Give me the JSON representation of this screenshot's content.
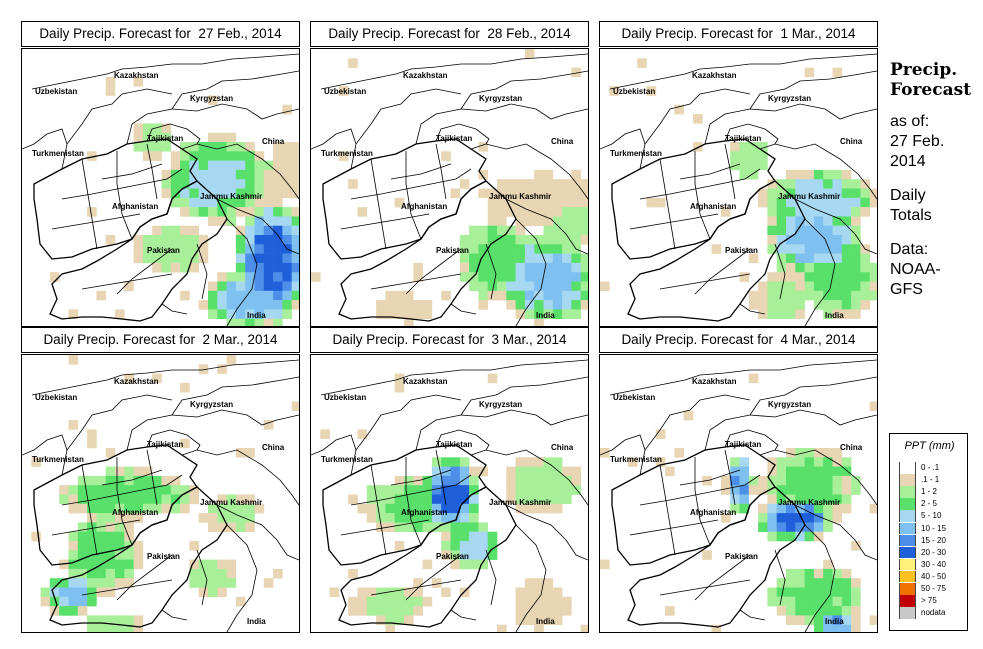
{
  "panels": [
    {
      "title": "Daily Precip. Forecast for  27 Feb., 2014",
      "pattern": "p1"
    },
    {
      "title": "Daily Precip. Forecast for  28 Feb., 2014",
      "pattern": "p2"
    },
    {
      "title": "Daily Precip. Forecast for  1 Mar., 2014",
      "pattern": "p3"
    },
    {
      "title": "Daily Precip. Forecast for  2 Mar., 2014",
      "pattern": "p4"
    },
    {
      "title": "Daily Precip. Forecast for  3 Mar., 2014",
      "pattern": "p5"
    },
    {
      "title": "Daily Precip. Forecast for  4 Mar., 2014",
      "pattern": "p6"
    }
  ],
  "map_labels": {
    "kazakhstan": "Kazakhstan",
    "uzbekistan": "Uzbekistan",
    "kyrgyzstan": "Kyrgyzstan",
    "tajikistan": "Tajikistan",
    "turkmenistan": "Turkmenistan",
    "china": "China",
    "jammu_kashmir": "Jammu Kashmir",
    "afghanistan": "Afghanistan",
    "pakistan": "Pakistan",
    "india": "India"
  },
  "side_info": {
    "title_line1": "Precip.",
    "title_line2": "Forecast",
    "asof_line1": "as of:",
    "asof_line2": "27 Feb.",
    "asof_line3": "2014",
    "totals_line1": "Daily",
    "totals_line2": "Totals",
    "data_line1": "Data:",
    "data_line2": "NOAA-",
    "data_line3": "GFS"
  },
  "legend": {
    "title": "PPT (mm)",
    "items": [
      {
        "label": "0 - .1",
        "color": "#ffffff"
      },
      {
        "label": ".1 - 1",
        "color": "#e8d5b3"
      },
      {
        "label": "1 - 2",
        "color": "#a8ef9a"
      },
      {
        "label": "2 - 5",
        "color": "#58e06a"
      },
      {
        "label": "5 - 10",
        "color": "#a6d8f2"
      },
      {
        "label": "10 - 15",
        "color": "#7ec0ef"
      },
      {
        "label": "15 - 20",
        "color": "#4d8fe8"
      },
      {
        "label": "20 - 30",
        "color": "#1f5fd9"
      },
      {
        "label": "30 - 40",
        "color": "#fff07a"
      },
      {
        "label": "40 - 50",
        "color": "#ffc020"
      },
      {
        "label": "50 - 75",
        "color": "#f07000"
      },
      {
        "label": "> 75",
        "color": "#c00000"
      },
      {
        "label": "nodata",
        "color": "#c8c8c8"
      }
    ]
  }
}
